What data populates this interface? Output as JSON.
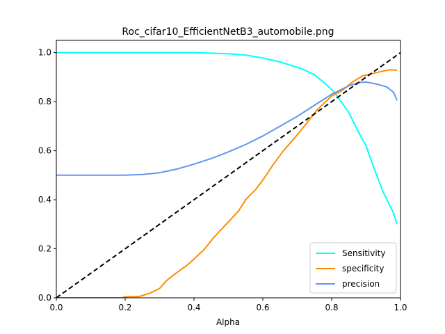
{
  "chart_data": {
    "type": "line",
    "title": "Roc_cifar10_EfficientNetB3_automobile.png",
    "xlabel": "Alpha",
    "ylabel": "",
    "xlim": [
      0,
      1
    ],
    "ylim": [
      0,
      1.05
    ],
    "xticks": [
      "0.0",
      "0.2",
      "0.4",
      "0.6",
      "0.8",
      "1.0"
    ],
    "yticks": [
      "0.0",
      "0.2",
      "0.4",
      "0.6",
      "0.8",
      "1.0"
    ],
    "grid": false,
    "legend_position": "lower-right",
    "series": [
      {
        "name": "Sensitivity",
        "color": "#00ffff",
        "x": [
          0.0,
          0.1,
          0.2,
          0.3,
          0.4,
          0.45,
          0.5,
          0.55,
          0.6,
          0.65,
          0.7,
          0.72,
          0.75,
          0.78,
          0.8,
          0.82,
          0.85,
          0.88,
          0.9,
          0.92,
          0.95,
          0.98,
          0.99
        ],
        "y": [
          1.0,
          1.0,
          1.0,
          1.0,
          1.0,
          0.998,
          0.995,
          0.99,
          0.978,
          0.962,
          0.94,
          0.93,
          0.91,
          0.875,
          0.85,
          0.815,
          0.755,
          0.67,
          0.62,
          0.54,
          0.43,
          0.345,
          0.3
        ]
      },
      {
        "name": "specificity",
        "color": "#ff8c00",
        "x": [
          0.0,
          0.1,
          0.19,
          0.2,
          0.22,
          0.24,
          0.27,
          0.3,
          0.32,
          0.35,
          0.38,
          0.4,
          0.43,
          0.46,
          0.5,
          0.53,
          0.55,
          0.58,
          0.6,
          0.63,
          0.66,
          0.7,
          0.73,
          0.76,
          0.8,
          0.83,
          0.86,
          0.89,
          0.92,
          0.95,
          0.97,
          0.99
        ],
        "y": [
          0.0,
          0.0,
          0.0,
          0.004,
          0.005,
          0.005,
          0.018,
          0.038,
          0.07,
          0.103,
          0.133,
          0.158,
          0.198,
          0.25,
          0.31,
          0.355,
          0.4,
          0.443,
          0.48,
          0.543,
          0.6,
          0.665,
          0.717,
          0.77,
          0.823,
          0.845,
          0.88,
          0.905,
          0.915,
          0.925,
          0.93,
          0.928
        ]
      },
      {
        "name": "precision",
        "color": "#6495ed",
        "x": [
          0.0,
          0.1,
          0.2,
          0.25,
          0.3,
          0.35,
          0.4,
          0.45,
          0.5,
          0.55,
          0.6,
          0.65,
          0.7,
          0.75,
          0.8,
          0.85,
          0.88,
          0.9,
          0.93,
          0.96,
          0.98,
          0.99
        ],
        "y": [
          0.5,
          0.5,
          0.5,
          0.503,
          0.51,
          0.525,
          0.545,
          0.568,
          0.595,
          0.625,
          0.66,
          0.7,
          0.74,
          0.785,
          0.83,
          0.865,
          0.878,
          0.88,
          0.872,
          0.86,
          0.838,
          0.805
        ]
      },
      {
        "name": "",
        "color": "#000000",
        "dashed": true,
        "x": [
          0.0,
          1.0
        ],
        "y": [
          0.0,
          1.0
        ]
      }
    ]
  }
}
